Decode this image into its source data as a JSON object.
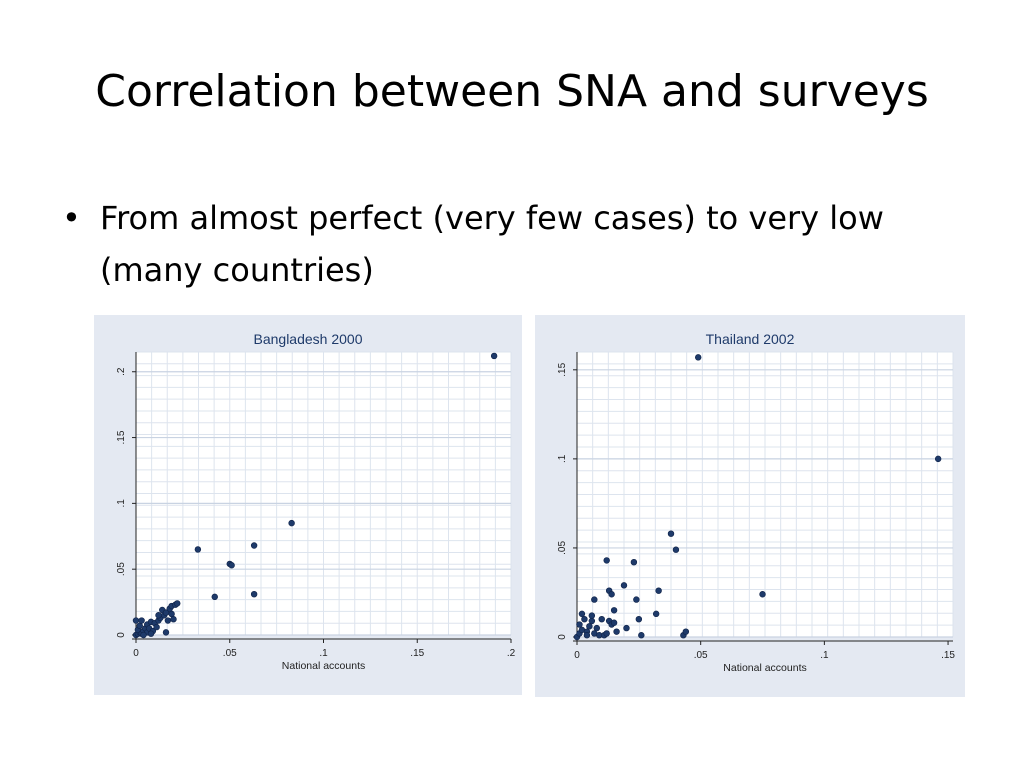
{
  "slide": {
    "title": "Correlation between SNA and surveys",
    "bullet": "From almost perfect (very few cases) to very low (many countries)"
  },
  "colors": {
    "panel_bg": "#e4e9f2",
    "plot_bg": "#ffffff",
    "grid": "#dde4ee",
    "marker": "#1e3a6a"
  },
  "chart_data": [
    {
      "type": "scatter",
      "title": "Bangladesh 2000",
      "xlabel": "National accounts",
      "ylabel": "",
      "xlim": [
        0,
        0.2
      ],
      "ylim": [
        0,
        0.215
      ],
      "xticks": [
        {
          "v": 0,
          "label": "0"
        },
        {
          "v": 0.05,
          "label": ".05"
        },
        {
          "v": 0.1,
          "label": ".1"
        },
        {
          "v": 0.15,
          "label": ".15"
        },
        {
          "v": 0.2,
          "label": ".2"
        }
      ],
      "yticks": [
        {
          "v": 0,
          "label": "0"
        },
        {
          "v": 0.05,
          "label": ".05"
        },
        {
          "v": 0.1,
          "label": ".1"
        },
        {
          "v": 0.15,
          "label": ".15"
        },
        {
          "v": 0.2,
          "label": ".2"
        }
      ],
      "grid": true,
      "points": [
        [
          0.0,
          0.0
        ],
        [
          0.001,
          0.001
        ],
        [
          0.002,
          0.002
        ],
        [
          0.001,
          0.004
        ],
        [
          0.003,
          0.001
        ],
        [
          0.002,
          0.007
        ],
        [
          0.004,
          0.003
        ],
        [
          0.005,
          0.005
        ],
        [
          0.006,
          0.002
        ],
        [
          0.0,
          0.011
        ],
        [
          0.003,
          0.011
        ],
        [
          0.006,
          0.008
        ],
        [
          0.007,
          0.005
        ],
        [
          0.008,
          0.01
        ],
        [
          0.009,
          0.003
        ],
        [
          0.01,
          0.009
        ],
        [
          0.011,
          0.006
        ],
        [
          0.012,
          0.011
        ],
        [
          0.013,
          0.013
        ],
        [
          0.012,
          0.015
        ],
        [
          0.014,
          0.019
        ],
        [
          0.015,
          0.015
        ],
        [
          0.016,
          0.017
        ],
        [
          0.017,
          0.011
        ],
        [
          0.016,
          0.002
        ],
        [
          0.018,
          0.02
        ],
        [
          0.019,
          0.016
        ],
        [
          0.02,
          0.012
        ],
        [
          0.019,
          0.022
        ],
        [
          0.021,
          0.023
        ],
        [
          0.022,
          0.024
        ],
        [
          0.004,
          0.0
        ],
        [
          0.008,
          0.001
        ],
        [
          0.033,
          0.065
        ],
        [
          0.042,
          0.029
        ],
        [
          0.05,
          0.054
        ],
        [
          0.051,
          0.053
        ],
        [
          0.063,
          0.031
        ],
        [
          0.063,
          0.068
        ],
        [
          0.083,
          0.085
        ],
        [
          0.191,
          0.212
        ]
      ]
    },
    {
      "type": "scatter",
      "title": "Thailand 2002",
      "xlabel": "National accounts",
      "ylabel": "",
      "xlim": [
        0,
        0.152
      ],
      "ylim": [
        0,
        0.16
      ],
      "xticks": [
        {
          "v": 0,
          "label": "0"
        },
        {
          "v": 0.05,
          "label": ".05"
        },
        {
          "v": 0.1,
          "label": ".1"
        },
        {
          "v": 0.15,
          "label": ".15"
        }
      ],
      "yticks": [
        {
          "v": 0,
          "label": "0"
        },
        {
          "v": 0.05,
          "label": ".05"
        },
        {
          "v": 0.1,
          "label": ".1"
        },
        {
          "v": 0.15,
          "label": ".15"
        }
      ],
      "grid": true,
      "points": [
        [
          0.0,
          0.0
        ],
        [
          0.001,
          0.002
        ],
        [
          0.002,
          0.004
        ],
        [
          0.001,
          0.007
        ],
        [
          0.003,
          0.01
        ],
        [
          0.002,
          0.013
        ],
        [
          0.004,
          0.003
        ],
        [
          0.005,
          0.006
        ],
        [
          0.006,
          0.009
        ],
        [
          0.004,
          0.001
        ],
        [
          0.007,
          0.002
        ],
        [
          0.006,
          0.012
        ],
        [
          0.007,
          0.021
        ],
        [
          0.008,
          0.005
        ],
        [
          0.009,
          0.001
        ],
        [
          0.01,
          0.01
        ],
        [
          0.011,
          0.001
        ],
        [
          0.012,
          0.043
        ],
        [
          0.012,
          0.002
        ],
        [
          0.013,
          0.026
        ],
        [
          0.013,
          0.009
        ],
        [
          0.014,
          0.024
        ],
        [
          0.014,
          0.007
        ],
        [
          0.015,
          0.008
        ],
        [
          0.015,
          0.015
        ],
        [
          0.016,
          0.003
        ],
        [
          0.019,
          0.029
        ],
        [
          0.02,
          0.005
        ],
        [
          0.023,
          0.042
        ],
        [
          0.024,
          0.021
        ],
        [
          0.025,
          0.01
        ],
        [
          0.026,
          0.001
        ],
        [
          0.032,
          0.013
        ],
        [
          0.033,
          0.026
        ],
        [
          0.038,
          0.058
        ],
        [
          0.04,
          0.049
        ],
        [
          0.043,
          0.001
        ],
        [
          0.044,
          0.003
        ],
        [
          0.049,
          0.157
        ],
        [
          0.075,
          0.024
        ],
        [
          0.146,
          0.1
        ]
      ]
    }
  ]
}
